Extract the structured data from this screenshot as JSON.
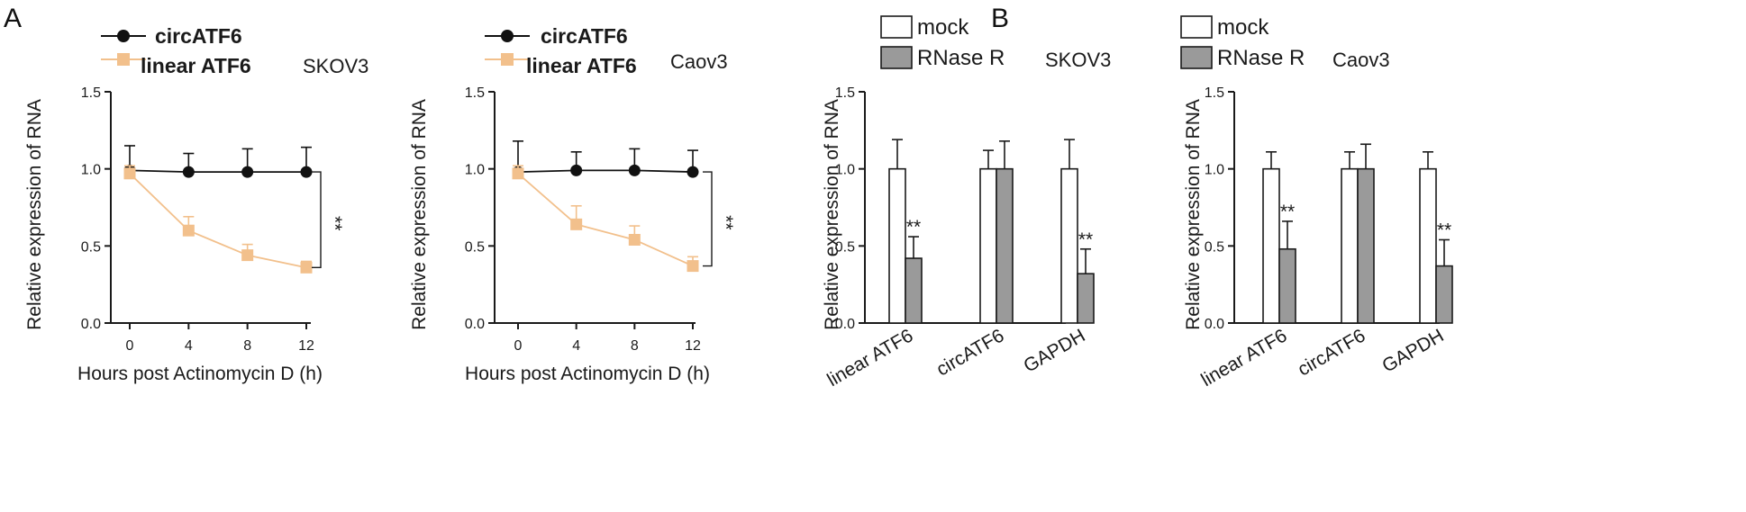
{
  "panels": {
    "A": "A",
    "B": "B"
  },
  "colors": {
    "circ": "#111111",
    "linear": "#f2c08c",
    "mock": "#ffffff",
    "rnase": "#9a9a9a",
    "axis": "#1a1a1a"
  },
  "chart_data": [
    {
      "type": "line",
      "panel": "A",
      "cell_line": "SKOV3",
      "xlabel": "Hours post Actinomycin D (h)",
      "ylabel": "Relative expression of RNA",
      "x": [
        0,
        4,
        8,
        12
      ],
      "x_tick_labels": [
        "0",
        "4",
        "8",
        "12"
      ],
      "ylim": [
        0,
        1.5
      ],
      "y_ticks": [
        "0.0",
        "0.5",
        "1.0",
        "1.5"
      ],
      "series": [
        {
          "name": "circATF6",
          "values": [
            0.99,
            0.98,
            0.98,
            0.98
          ],
          "errors": [
            0.16,
            0.12,
            0.15,
            0.16
          ]
        },
        {
          "name": "linear ATF6",
          "values": [
            0.97,
            0.6,
            0.44,
            0.36
          ],
          "errors": [
            0.05,
            0.09,
            0.07,
            0.04
          ]
        }
      ],
      "significance": "**"
    },
    {
      "type": "line",
      "panel": "A",
      "cell_line": "Caov3",
      "xlabel": "Hours post Actinomycin D (h)",
      "ylabel": "Relative expression of RNA",
      "x": [
        0,
        4,
        8,
        12
      ],
      "x_tick_labels": [
        "0",
        "4",
        "8",
        "12"
      ],
      "ylim": [
        0,
        1.5
      ],
      "y_ticks": [
        "0.0",
        "0.5",
        "1.0",
        "1.5"
      ],
      "series": [
        {
          "name": "circATF6",
          "values": [
            0.98,
            0.99,
            0.99,
            0.98
          ],
          "errors": [
            0.2,
            0.12,
            0.14,
            0.14
          ]
        },
        {
          "name": "linear ATF6",
          "values": [
            0.97,
            0.64,
            0.54,
            0.37
          ],
          "errors": [
            0.05,
            0.12,
            0.09,
            0.06
          ]
        }
      ],
      "significance": "**"
    },
    {
      "type": "bar",
      "panel": "B",
      "cell_line": "SKOV3",
      "ylabel": "Relative expression of RNA",
      "categories": [
        "linear ATF6",
        "circATF6",
        "GAPDH"
      ],
      "ylim": [
        0,
        1.5
      ],
      "y_ticks": [
        "0.0",
        "0.5",
        "1.0",
        "1.5"
      ],
      "series": [
        {
          "name": "mock",
          "values": [
            1.0,
            1.0,
            1.0
          ],
          "errors": [
            0.19,
            0.12,
            0.19
          ]
        },
        {
          "name": "RNase R",
          "values": [
            0.42,
            1.0,
            0.32
          ],
          "errors": [
            0.14,
            0.18,
            0.16
          ]
        }
      ],
      "significance": [
        "**",
        "",
        "**"
      ]
    },
    {
      "type": "bar",
      "panel": "B",
      "cell_line": "Caov3",
      "ylabel": "Relative expression of RNA",
      "categories": [
        "linear ATF6",
        "circATF6",
        "GAPDH"
      ],
      "ylim": [
        0,
        1.5
      ],
      "y_ticks": [
        "0.0",
        "0.5",
        "1.0",
        "1.5"
      ],
      "series": [
        {
          "name": "mock",
          "values": [
            1.0,
            1.0,
            1.0
          ],
          "errors": [
            0.11,
            0.11,
            0.11
          ]
        },
        {
          "name": "RNase R",
          "values": [
            0.48,
            1.0,
            0.37
          ],
          "errors": [
            0.18,
            0.16,
            0.17
          ]
        }
      ],
      "significance": [
        "**",
        "",
        "**"
      ]
    }
  ]
}
